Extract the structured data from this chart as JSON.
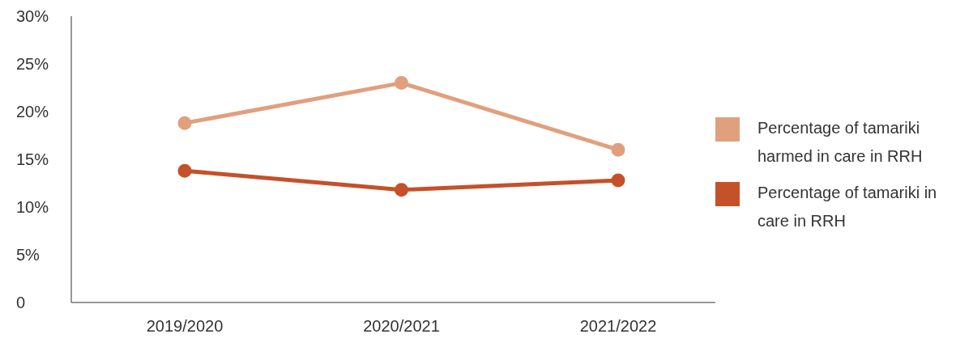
{
  "chart_data": {
    "type": "line",
    "categories": [
      "2019/2020",
      "2020/2021",
      "2021/2022"
    ],
    "series": [
      {
        "name": "Percentage of tamariki harmed in care in RRH",
        "color": "#e0a07e",
        "values": [
          18.8,
          23.0,
          16.0
        ]
      },
      {
        "name": "Percentage of tamariki in care in RRH",
        "color": "#c4512a",
        "values": [
          13.8,
          11.8,
          12.8
        ]
      }
    ],
    "ylim": [
      0,
      30
    ],
    "yticks": [
      {
        "value": 0,
        "label": "0"
      },
      {
        "value": 5,
        "label": "5%"
      },
      {
        "value": 10,
        "label": "10%"
      },
      {
        "value": 15,
        "label": "15%"
      },
      {
        "value": 20,
        "label": "20%"
      },
      {
        "value": 25,
        "label": "25%"
      },
      {
        "value": 30,
        "label": "30%"
      }
    ],
    "grid": false,
    "legend": "right",
    "marker": "circle",
    "line_style": "solid"
  }
}
